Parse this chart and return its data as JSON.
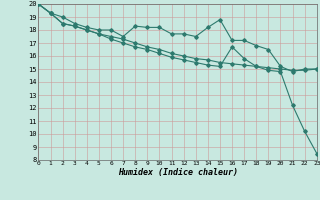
{
  "xlabel": "Humidex (Indice chaleur)",
  "bg_color": "#c8e8e0",
  "grid_color_major": "#aacccc",
  "grid_color_minor": "#bbdddd",
  "line_color": "#2d7a6e",
  "xlim": [
    0,
    23
  ],
  "ylim": [
    8,
    20
  ],
  "xticks": [
    0,
    1,
    2,
    3,
    4,
    5,
    6,
    7,
    8,
    9,
    10,
    11,
    12,
    13,
    14,
    15,
    16,
    17,
    18,
    19,
    20,
    21,
    22,
    23
  ],
  "yticks": [
    8,
    9,
    10,
    11,
    12,
    13,
    14,
    15,
    16,
    17,
    18,
    19,
    20
  ],
  "line1_x": [
    0,
    1,
    2,
    3,
    4,
    5,
    6,
    7,
    8,
    9,
    10,
    11,
    12,
    13,
    14,
    15,
    16,
    17,
    18,
    19,
    20,
    21,
    22,
    23
  ],
  "line1_y": [
    20.0,
    19.3,
    19.0,
    18.5,
    18.2,
    18.0,
    18.0,
    17.5,
    18.3,
    18.2,
    18.2,
    17.7,
    17.7,
    17.5,
    18.2,
    18.8,
    17.2,
    17.2,
    16.8,
    16.5,
    15.2,
    14.8,
    15.0,
    15.0
  ],
  "line2_x": [
    0,
    1,
    2,
    3,
    4,
    5,
    6,
    7,
    8,
    9,
    10,
    11,
    12,
    13,
    14,
    15,
    16,
    17,
    18,
    19,
    20,
    21,
    22,
    23
  ],
  "line2_y": [
    20.0,
    19.3,
    18.5,
    18.3,
    18.0,
    17.7,
    17.5,
    17.3,
    17.0,
    16.7,
    16.5,
    16.2,
    16.0,
    15.8,
    15.7,
    15.5,
    15.4,
    15.3,
    15.2,
    15.1,
    15.0,
    14.9,
    14.9,
    15.0
  ],
  "line3_x": [
    0,
    1,
    2,
    3,
    4,
    5,
    6,
    7,
    8,
    9,
    10,
    11,
    12,
    13,
    14,
    15,
    16,
    17,
    18,
    19,
    20,
    21,
    22,
    23
  ],
  "line3_y": [
    20.0,
    19.3,
    18.5,
    18.3,
    18.0,
    17.7,
    17.3,
    17.0,
    16.7,
    16.5,
    16.2,
    15.9,
    15.7,
    15.5,
    15.3,
    15.2,
    16.7,
    15.8,
    15.2,
    14.9,
    14.8,
    12.2,
    10.2,
    8.5
  ]
}
